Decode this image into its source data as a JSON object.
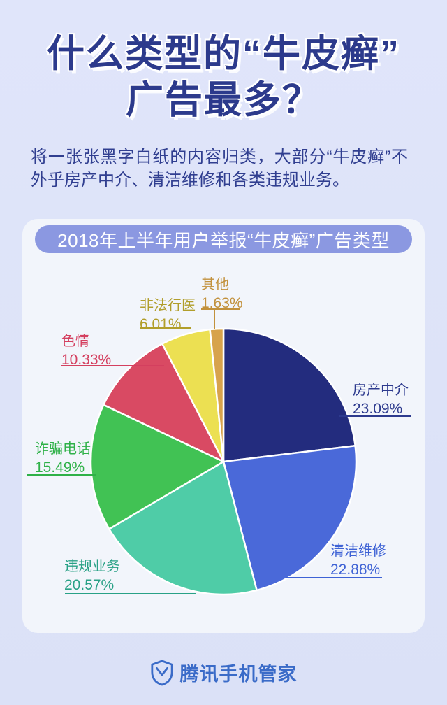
{
  "poster": {
    "title_line1": "什么类型的“牛皮癣”",
    "title_line2": "广告最多？",
    "subtitle": "将一张张黑字白纸的内容归类，大部分“牛皮癣”不外乎房产中介、清洁维修和各类违规业务。",
    "footer": {
      "brand": "腾讯手机管家"
    },
    "colors": {
      "background": "#dde3f8",
      "card": "#f2f5fb",
      "header_pill": "#8b98e1",
      "title_text": "#2c3a8c",
      "footer_brand": "#3a6bc8"
    }
  },
  "chart_data": {
    "type": "pie",
    "title": "2018年上半年用户举报“牛皮癣”广告类型",
    "unit": "%",
    "start_angle_deg": 0,
    "direction": "clockwise",
    "legend_position": "callout-labels",
    "slices": [
      {
        "label": "房产中介",
        "value": 23.09,
        "display": "23.09%",
        "color": "#232c7e",
        "label_color": "#2d3a8e"
      },
      {
        "label": "清洁维修",
        "value": 22.88,
        "display": "22.88%",
        "color": "#4a69d9",
        "label_color": "#3e62d5"
      },
      {
        "label": "违规业务",
        "value": 20.57,
        "display": "20.57%",
        "color": "#4fcca7",
        "label_color": "#29a186"
      },
      {
        "label": "诈骗电话",
        "value": 15.49,
        "display": "15.49%",
        "color": "#41c254",
        "label_color": "#2fb148"
      },
      {
        "label": "色情",
        "value": 10.33,
        "display": "10.33%",
        "color": "#d94a63",
        "label_color": "#d43f5f"
      },
      {
        "label": "非法行医",
        "value": 6.01,
        "display": "6.01%",
        "color": "#ece052",
        "label_color": "#b19e2b"
      },
      {
        "label": "其他",
        "value": 1.63,
        "display": "1.63%",
        "color": "#d7a34c",
        "label_color": "#c2913c"
      }
    ]
  }
}
